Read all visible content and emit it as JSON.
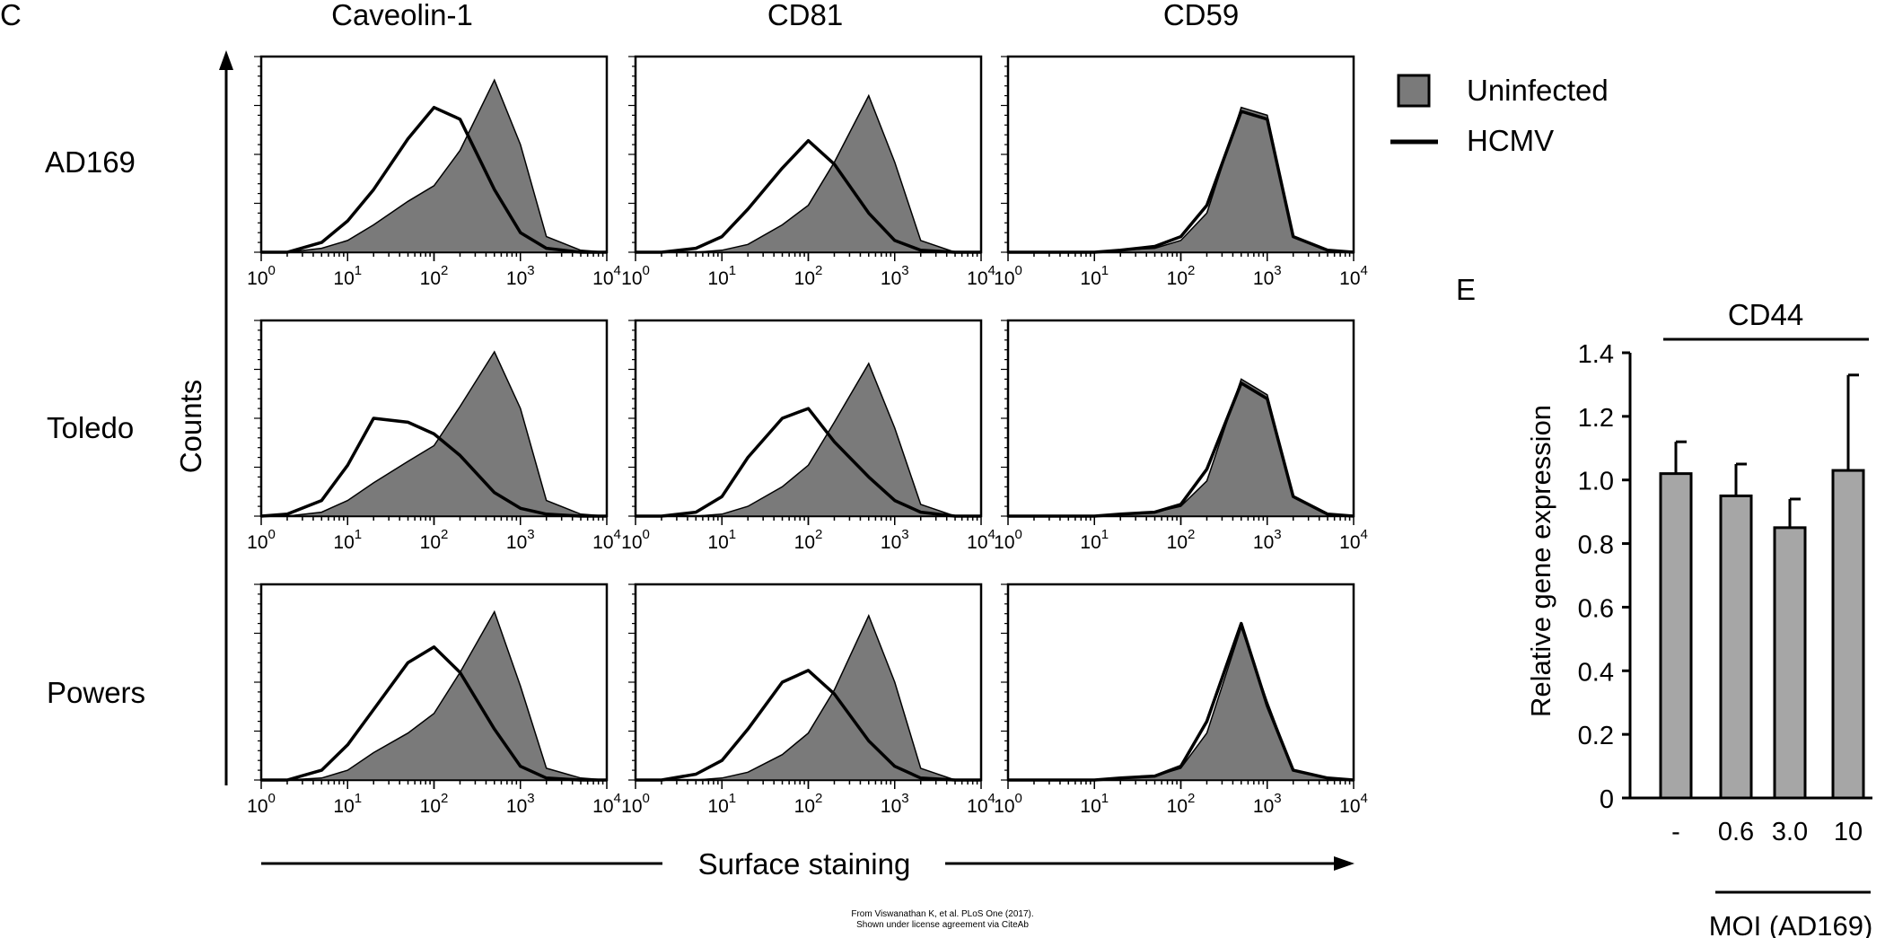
{
  "panel_c": {
    "letter": "C",
    "columns": [
      "Caveolin-1",
      "CD81",
      "CD59"
    ],
    "rows": [
      "AD169",
      "Toledo",
      "Powers"
    ],
    "y_axis_label": "Counts",
    "x_axis_label": "Surface staining",
    "legend": {
      "filled": "Uninfected",
      "line": "HCMV"
    },
    "x_scale": "log",
    "x_ticks": [
      "10",
      "10",
      "10",
      "10",
      "10"
    ],
    "x_tick_exponents": [
      "0",
      "1",
      "2",
      "3",
      "4"
    ]
  },
  "panel_e": {
    "letter": "E",
    "title": "CD44",
    "ylabel": "Relative gene expression",
    "xlabel": "MOI (AD169)",
    "categories": [
      "-",
      "0.6",
      "3.0",
      "10"
    ],
    "y_ticks": [
      "0",
      "0.2",
      "0.4",
      "0.6",
      "0.8",
      "1.0",
      "1.2",
      "1.4"
    ]
  },
  "credit": {
    "line1": "From Viswanathan K, et al. PLoS One (2017).",
    "line2": "Shown under license agreement via CiteAb"
  },
  "colors": {
    "fill": "#7a7a7a",
    "line": "#000000",
    "bar": "#a6a6a6"
  },
  "chart_data": [
    {
      "type": "area",
      "kind": "flow-cytometry-histograms",
      "x_scale": "log",
      "xlim": [
        1,
        10000
      ],
      "x_grid": [
        1,
        2,
        5,
        10,
        20,
        50,
        100,
        200,
        500,
        1000,
        2000,
        5000,
        10000
      ],
      "panels": [
        {
          "row": "AD169",
          "column": "Caveolin-1",
          "uninfected": [
            0,
            0,
            0.02,
            0.06,
            0.14,
            0.26,
            0.34,
            0.52,
            0.88,
            0.55,
            0.08,
            0.01,
            0
          ],
          "hcmv": [
            0,
            0,
            0.05,
            0.16,
            0.32,
            0.58,
            0.74,
            0.68,
            0.32,
            0.1,
            0.02,
            0,
            0
          ]
        },
        {
          "row": "AD169",
          "column": "CD81",
          "uninfected": [
            0,
            0,
            0,
            0.01,
            0.04,
            0.14,
            0.24,
            0.46,
            0.8,
            0.46,
            0.06,
            0,
            0
          ],
          "hcmv": [
            0,
            0,
            0.02,
            0.08,
            0.22,
            0.43,
            0.57,
            0.45,
            0.2,
            0.06,
            0.01,
            0,
            0
          ]
        },
        {
          "row": "AD169",
          "column": "CD59",
          "uninfected": [
            0,
            0,
            0,
            0,
            0.01,
            0.02,
            0.06,
            0.2,
            0.74,
            0.7,
            0.08,
            0.01,
            0
          ],
          "hcmv": [
            0,
            0,
            0,
            0,
            0.01,
            0.03,
            0.08,
            0.24,
            0.72,
            0.68,
            0.08,
            0.01,
            0
          ]
        },
        {
          "row": "Toledo",
          "column": "Caveolin-1",
          "uninfected": [
            0,
            0,
            0.02,
            0.08,
            0.17,
            0.28,
            0.36,
            0.56,
            0.84,
            0.55,
            0.08,
            0.01,
            0
          ],
          "hcmv": [
            0,
            0.01,
            0.08,
            0.26,
            0.5,
            0.48,
            0.42,
            0.31,
            0.12,
            0.04,
            0.01,
            0,
            0
          ]
        },
        {
          "row": "Toledo",
          "column": "CD81",
          "uninfected": [
            0,
            0,
            0,
            0.01,
            0.05,
            0.15,
            0.26,
            0.48,
            0.78,
            0.45,
            0.06,
            0,
            0
          ],
          "hcmv": [
            0,
            0,
            0.02,
            0.1,
            0.3,
            0.5,
            0.55,
            0.38,
            0.2,
            0.08,
            0.02,
            0,
            0
          ]
        },
        {
          "row": "Toledo",
          "column": "CD59",
          "uninfected": [
            0,
            0,
            0,
            0,
            0.01,
            0.02,
            0.05,
            0.18,
            0.7,
            0.62,
            0.1,
            0.01,
            0
          ],
          "hcmv": [
            0,
            0,
            0,
            0,
            0.01,
            0.02,
            0.06,
            0.24,
            0.68,
            0.6,
            0.1,
            0.01,
            0
          ]
        },
        {
          "row": "Powers",
          "column": "Caveolin-1",
          "uninfected": [
            0,
            0,
            0.01,
            0.05,
            0.14,
            0.24,
            0.34,
            0.55,
            0.86,
            0.48,
            0.06,
            0.01,
            0
          ],
          "hcmv": [
            0,
            0,
            0.05,
            0.18,
            0.36,
            0.6,
            0.68,
            0.55,
            0.26,
            0.07,
            0.01,
            0,
            0
          ]
        },
        {
          "row": "Powers",
          "column": "CD81",
          "uninfected": [
            0,
            0,
            0,
            0.01,
            0.04,
            0.13,
            0.24,
            0.46,
            0.84,
            0.5,
            0.06,
            0,
            0
          ],
          "hcmv": [
            0,
            0,
            0.03,
            0.1,
            0.26,
            0.5,
            0.56,
            0.44,
            0.2,
            0.07,
            0.01,
            0,
            0
          ]
        },
        {
          "row": "Powers",
          "column": "CD59",
          "uninfected": [
            0,
            0,
            0,
            0,
            0.01,
            0.02,
            0.06,
            0.24,
            0.78,
            0.4,
            0.05,
            0.01,
            0
          ],
          "hcmv": [
            0,
            0,
            0,
            0,
            0.01,
            0.02,
            0.07,
            0.3,
            0.8,
            0.38,
            0.05,
            0.01,
            0
          ]
        }
      ]
    },
    {
      "type": "bar",
      "title": "CD44",
      "categories": [
        "-",
        "0.6",
        "3.0",
        "10"
      ],
      "values": [
        1.02,
        0.95,
        0.85,
        1.03
      ],
      "errors": [
        0.1,
        0.1,
        0.09,
        0.3
      ],
      "xlabel": "MOI (AD169)",
      "ylabel": "Relative gene expression",
      "ylim": [
        0,
        1.4
      ],
      "y_ticks": [
        0,
        0.2,
        0.4,
        0.6,
        0.8,
        1.0,
        1.2,
        1.4
      ]
    }
  ]
}
